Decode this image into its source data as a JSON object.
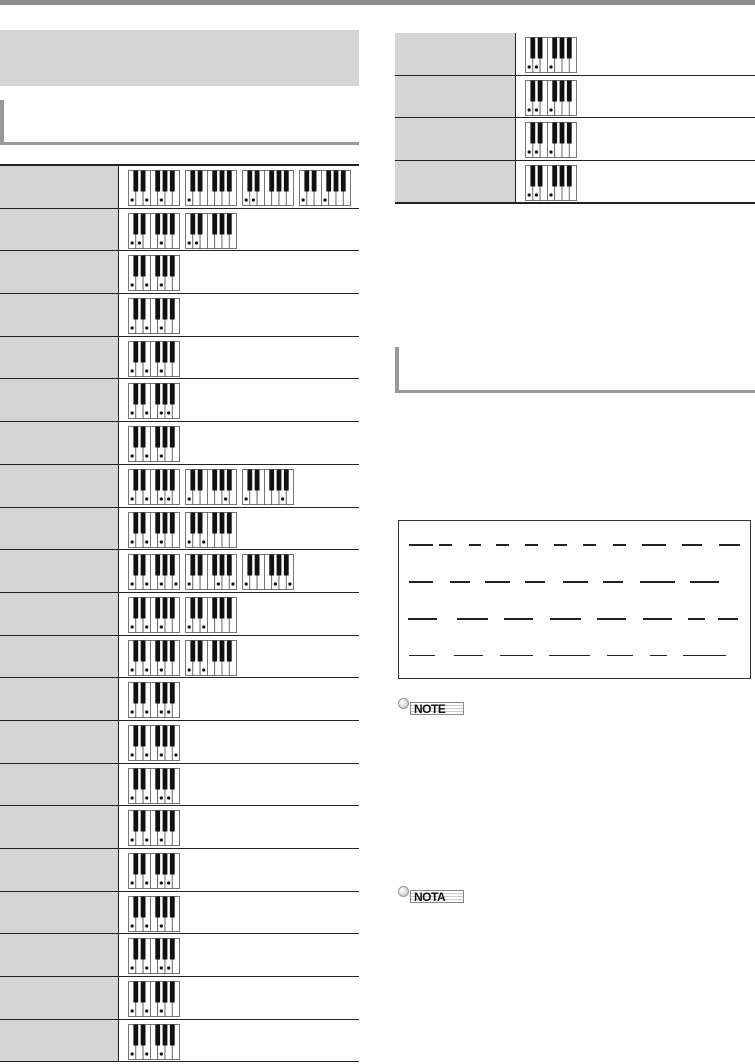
{
  "left_table": {
    "rows": [
      {
        "keyboards": [
          [
            0,
            2,
            4
          ],
          [
            0
          ],
          [
            0,
            1
          ],
          [
            0,
            3
          ]
        ]
      },
      {
        "keyboards": [
          [
            0,
            1,
            4
          ],
          [
            0,
            1
          ]
        ]
      },
      {
        "keyboards": [
          [
            0,
            2,
            4
          ]
        ]
      },
      {
        "keyboards": [
          [
            0,
            2,
            4
          ]
        ]
      },
      {
        "keyboards": [
          [
            0,
            2,
            4
          ]
        ]
      },
      {
        "keyboards": [
          [
            0,
            2,
            4,
            5
          ]
        ]
      },
      {
        "keyboards": [
          [
            0,
            2,
            4
          ]
        ]
      },
      {
        "keyboards": [
          [
            0,
            2,
            4,
            5
          ],
          [
            0,
            5
          ],
          [
            0,
            5
          ]
        ]
      },
      {
        "keyboards": [
          [
            0,
            2,
            4
          ],
          [
            0,
            2
          ]
        ]
      },
      {
        "keyboards": [
          [
            0,
            2,
            4,
            6
          ],
          [
            0,
            4,
            6
          ],
          [
            0,
            4,
            6
          ]
        ]
      },
      {
        "keyboards": [
          [
            0,
            2,
            4
          ],
          [
            0,
            2
          ]
        ]
      },
      {
        "keyboards": [
          [
            0,
            2,
            4
          ],
          [
            0,
            2
          ]
        ]
      },
      {
        "keyboards": [
          [
            0,
            2,
            4,
            5
          ]
        ]
      },
      {
        "keyboards": [
          [
            0,
            2,
            4,
            6
          ]
        ]
      },
      {
        "keyboards": [
          [
            0,
            2,
            4,
            5
          ]
        ]
      },
      {
        "keyboards": [
          [
            0,
            2,
            4
          ]
        ]
      },
      {
        "keyboards": [
          [
            0,
            2,
            4,
            5
          ]
        ]
      },
      {
        "keyboards": [
          [
            0,
            2,
            4
          ]
        ]
      },
      {
        "keyboards": [
          [
            0,
            2,
            4,
            5
          ]
        ]
      },
      {
        "keyboards": [
          [
            0,
            2,
            4
          ]
        ]
      },
      {
        "keyboards": [
          [
            0,
            2,
            4
          ]
        ]
      }
    ]
  },
  "right_table": {
    "rows": [
      {
        "keyboards": [
          [
            0,
            1,
            3
          ]
        ]
      },
      {
        "keyboards": [
          [
            0,
            1,
            3
          ]
        ]
      },
      {
        "keyboards": [
          [
            0,
            1,
            3
          ]
        ]
      },
      {
        "keyboards": [
          [
            0,
            1,
            3
          ]
        ]
      }
    ]
  },
  "note_label": "NOTE",
  "nota_label": "NOTA",
  "colors": {
    "header_gray": "#d4d4d4",
    "rule_gray": "#999999",
    "top_bar": "#8e8c8c"
  }
}
